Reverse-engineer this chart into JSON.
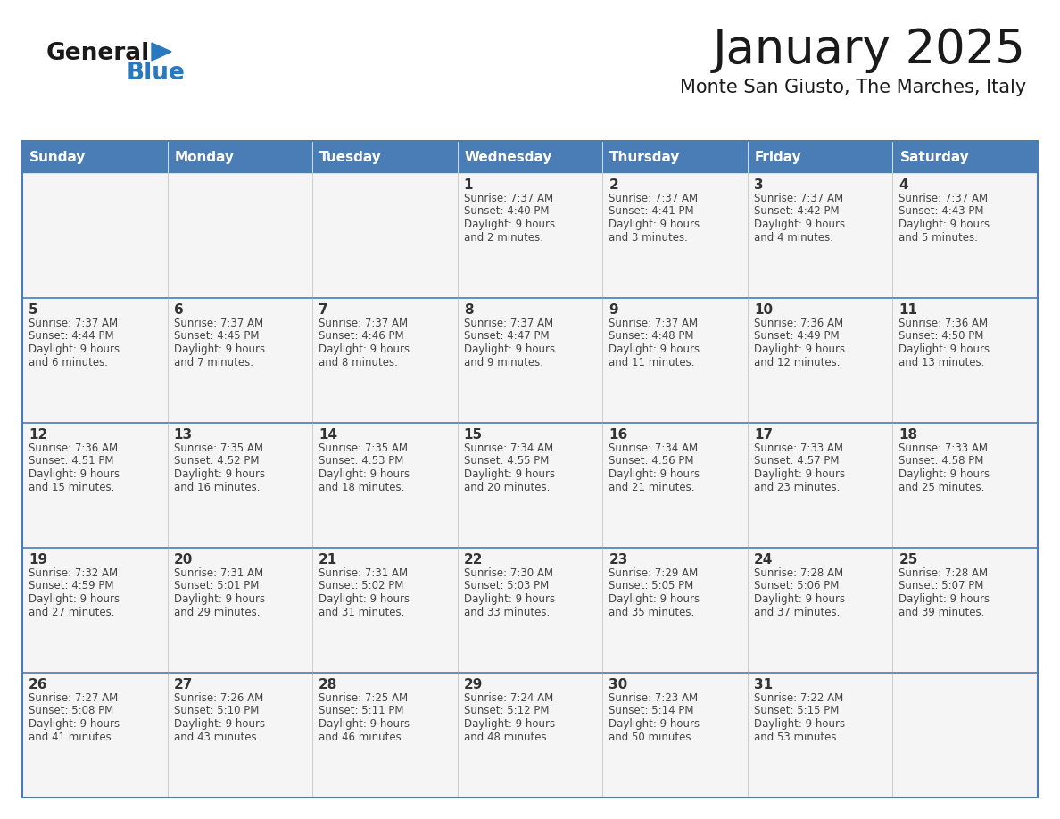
{
  "title": "January 2025",
  "subtitle": "Monte San Giusto, The Marches, Italy",
  "header_bg_color": "#4A7DB5",
  "header_text_color": "#FFFFFF",
  "cell_bg_color": "#F5F5F5",
  "grid_line_color": "#4A7DB5",
  "separator_color": "#4A7DB5",
  "day_headers": [
    "Sunday",
    "Monday",
    "Tuesday",
    "Wednesday",
    "Thursday",
    "Friday",
    "Saturday"
  ],
  "title_color": "#1a1a1a",
  "subtitle_color": "#1a1a1a",
  "day_num_color": "#333333",
  "info_color": "#444444",
  "logo_general_color": "#1a1a1a",
  "logo_blue_color": "#2979C0",
  "calendar_data": [
    [
      null,
      null,
      null,
      {
        "day": 1,
        "sunrise": "7:37 AM",
        "sunset": "4:40 PM",
        "daylight": "9 hours and 2 minutes."
      },
      {
        "day": 2,
        "sunrise": "7:37 AM",
        "sunset": "4:41 PM",
        "daylight": "9 hours and 3 minutes."
      },
      {
        "day": 3,
        "sunrise": "7:37 AM",
        "sunset": "4:42 PM",
        "daylight": "9 hours and 4 minutes."
      },
      {
        "day": 4,
        "sunrise": "7:37 AM",
        "sunset": "4:43 PM",
        "daylight": "9 hours and 5 minutes."
      }
    ],
    [
      {
        "day": 5,
        "sunrise": "7:37 AM",
        "sunset": "4:44 PM",
        "daylight": "9 hours and 6 minutes."
      },
      {
        "day": 6,
        "sunrise": "7:37 AM",
        "sunset": "4:45 PM",
        "daylight": "9 hours and 7 minutes."
      },
      {
        "day": 7,
        "sunrise": "7:37 AM",
        "sunset": "4:46 PM",
        "daylight": "9 hours and 8 minutes."
      },
      {
        "day": 8,
        "sunrise": "7:37 AM",
        "sunset": "4:47 PM",
        "daylight": "9 hours and 9 minutes."
      },
      {
        "day": 9,
        "sunrise": "7:37 AM",
        "sunset": "4:48 PM",
        "daylight": "9 hours and 11 minutes."
      },
      {
        "day": 10,
        "sunrise": "7:36 AM",
        "sunset": "4:49 PM",
        "daylight": "9 hours and 12 minutes."
      },
      {
        "day": 11,
        "sunrise": "7:36 AM",
        "sunset": "4:50 PM",
        "daylight": "9 hours and 13 minutes."
      }
    ],
    [
      {
        "day": 12,
        "sunrise": "7:36 AM",
        "sunset": "4:51 PM",
        "daylight": "9 hours and 15 minutes."
      },
      {
        "day": 13,
        "sunrise": "7:35 AM",
        "sunset": "4:52 PM",
        "daylight": "9 hours and 16 minutes."
      },
      {
        "day": 14,
        "sunrise": "7:35 AM",
        "sunset": "4:53 PM",
        "daylight": "9 hours and 18 minutes."
      },
      {
        "day": 15,
        "sunrise": "7:34 AM",
        "sunset": "4:55 PM",
        "daylight": "9 hours and 20 minutes."
      },
      {
        "day": 16,
        "sunrise": "7:34 AM",
        "sunset": "4:56 PM",
        "daylight": "9 hours and 21 minutes."
      },
      {
        "day": 17,
        "sunrise": "7:33 AM",
        "sunset": "4:57 PM",
        "daylight": "9 hours and 23 minutes."
      },
      {
        "day": 18,
        "sunrise": "7:33 AM",
        "sunset": "4:58 PM",
        "daylight": "9 hours and 25 minutes."
      }
    ],
    [
      {
        "day": 19,
        "sunrise": "7:32 AM",
        "sunset": "4:59 PM",
        "daylight": "9 hours and 27 minutes."
      },
      {
        "day": 20,
        "sunrise": "7:31 AM",
        "sunset": "5:01 PM",
        "daylight": "9 hours and 29 minutes."
      },
      {
        "day": 21,
        "sunrise": "7:31 AM",
        "sunset": "5:02 PM",
        "daylight": "9 hours and 31 minutes."
      },
      {
        "day": 22,
        "sunrise": "7:30 AM",
        "sunset": "5:03 PM",
        "daylight": "9 hours and 33 minutes."
      },
      {
        "day": 23,
        "sunrise": "7:29 AM",
        "sunset": "5:05 PM",
        "daylight": "9 hours and 35 minutes."
      },
      {
        "day": 24,
        "sunrise": "7:28 AM",
        "sunset": "5:06 PM",
        "daylight": "9 hours and 37 minutes."
      },
      {
        "day": 25,
        "sunrise": "7:28 AM",
        "sunset": "5:07 PM",
        "daylight": "9 hours and 39 minutes."
      }
    ],
    [
      {
        "day": 26,
        "sunrise": "7:27 AM",
        "sunset": "5:08 PM",
        "daylight": "9 hours and 41 minutes."
      },
      {
        "day": 27,
        "sunrise": "7:26 AM",
        "sunset": "5:10 PM",
        "daylight": "9 hours and 43 minutes."
      },
      {
        "day": 28,
        "sunrise": "7:25 AM",
        "sunset": "5:11 PM",
        "daylight": "9 hours and 46 minutes."
      },
      {
        "day": 29,
        "sunrise": "7:24 AM",
        "sunset": "5:12 PM",
        "daylight": "9 hours and 48 minutes."
      },
      {
        "day": 30,
        "sunrise": "7:23 AM",
        "sunset": "5:14 PM",
        "daylight": "9 hours and 50 minutes."
      },
      {
        "day": 31,
        "sunrise": "7:22 AM",
        "sunset": "5:15 PM",
        "daylight": "9 hours and 53 minutes."
      },
      null
    ]
  ]
}
